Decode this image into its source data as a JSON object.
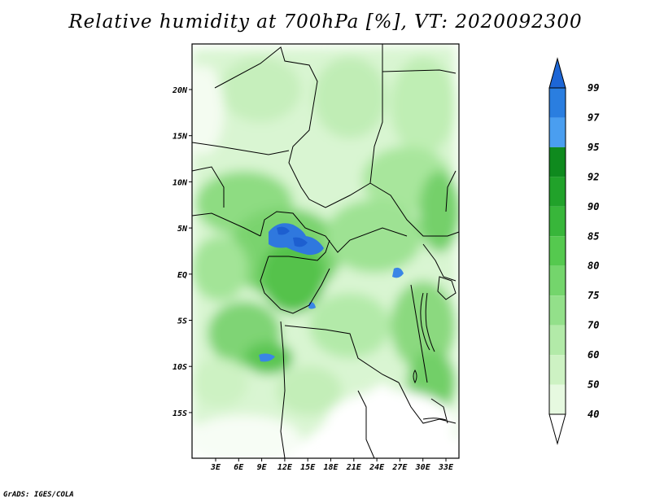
{
  "title": "Relative humidity at 700hPa [%], VT: 2020092300",
  "credit": "GrADS: IGES/COLA",
  "map": {
    "lon_labels": [
      "3E",
      "6E",
      "9E",
      "12E",
      "15E",
      "18E",
      "21E",
      "24E",
      "27E",
      "30E",
      "33E"
    ],
    "lat_labels": [
      "20N",
      "15N",
      "10N",
      "5N",
      "EQ",
      "5S",
      "10S",
      "15S"
    ]
  },
  "colorbar": {
    "labels": [
      "99",
      "97",
      "95",
      "92",
      "90",
      "85",
      "80",
      "75",
      "70",
      "60",
      "50",
      "40"
    ],
    "colors": [
      "#1d66d6",
      "#2a7ee0",
      "#4a9ef0",
      "#0f8a1e",
      "#21a22a",
      "#38b63a",
      "#55c94f",
      "#74d56c",
      "#93e08a",
      "#b2eaa8",
      "#cdf2c3",
      "#e6f9e0",
      "#ffffff"
    ]
  }
}
